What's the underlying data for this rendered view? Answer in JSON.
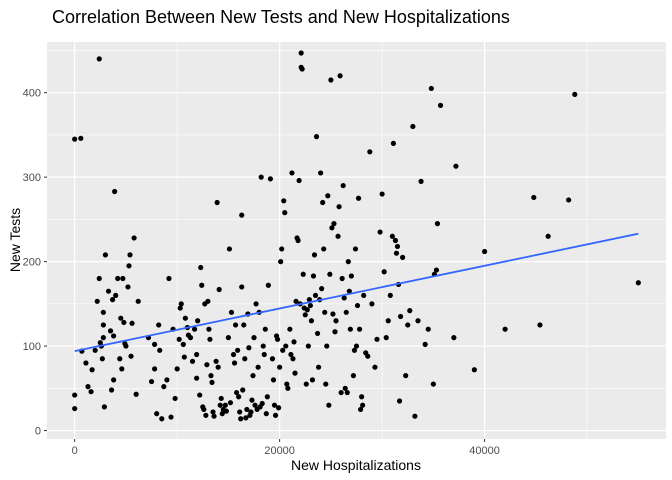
{
  "chart_data": {
    "type": "scatter",
    "title": "Correlation Between New Tests and New Hospitalizations",
    "xlabel": "New Hospitalizations",
    "ylabel": "New Tests",
    "xlim": [
      -2700,
      57700
    ],
    "ylim": [
      -10,
      460
    ],
    "x_ticks": [
      0,
      20000,
      40000
    ],
    "x_tick_labels": [
      "0",
      "20000",
      "40000"
    ],
    "y_ticks": [
      0,
      100,
      200,
      300,
      400
    ],
    "y_tick_labels": [
      "0",
      "100",
      "200",
      "300",
      "400"
    ],
    "grid": true,
    "panel_background": "#ebebeb",
    "grid_color": "#ffffff",
    "point_color": "#000000",
    "trend_color": "#3366ff",
    "trend_line": {
      "x": [
        0,
        55000
      ],
      "y": [
        94,
        233
      ]
    },
    "points": [
      [
        0,
        345
      ],
      [
        600,
        346
      ],
      [
        0,
        26
      ],
      [
        0,
        42
      ],
      [
        700,
        94
      ],
      [
        1100,
        80
      ],
      [
        1300,
        52
      ],
      [
        1600,
        46
      ],
      [
        1700,
        72
      ],
      [
        2000,
        95
      ],
      [
        2200,
        153
      ],
      [
        2400,
        180
      ],
      [
        2400,
        440
      ],
      [
        2500,
        104
      ],
      [
        2600,
        100
      ],
      [
        2700,
        85
      ],
      [
        2800,
        110
      ],
      [
        2800,
        125
      ],
      [
        2800,
        140
      ],
      [
        2900,
        28
      ],
      [
        3000,
        208
      ],
      [
        3300,
        165
      ],
      [
        3500,
        118
      ],
      [
        3600,
        48
      ],
      [
        3700,
        155
      ],
      [
        3800,
        60
      ],
      [
        3800,
        112
      ],
      [
        3900,
        283
      ],
      [
        4000,
        160
      ],
      [
        4200,
        180
      ],
      [
        4400,
        85
      ],
      [
        4500,
        133
      ],
      [
        4600,
        73
      ],
      [
        4700,
        180
      ],
      [
        4800,
        128
      ],
      [
        4900,
        103
      ],
      [
        5000,
        100
      ],
      [
        5200,
        170
      ],
      [
        5300,
        195
      ],
      [
        5400,
        208
      ],
      [
        5500,
        88
      ],
      [
        5600,
        127
      ],
      [
        5800,
        228
      ],
      [
        6000,
        43
      ],
      [
        6200,
        153
      ],
      [
        7200,
        110
      ],
      [
        7500,
        58
      ],
      [
        7800,
        102
      ],
      [
        7800,
        73
      ],
      [
        8000,
        20
      ],
      [
        8200,
        125
      ],
      [
        8300,
        95
      ],
      [
        8500,
        14
      ],
      [
        8700,
        52
      ],
      [
        9000,
        60
      ],
      [
        9200,
        180
      ],
      [
        9400,
        16
      ],
      [
        9600,
        120
      ],
      [
        9800,
        38
      ],
      [
        10000,
        73
      ],
      [
        10200,
        108
      ],
      [
        10300,
        145
      ],
      [
        10400,
        150
      ],
      [
        10600,
        102
      ],
      [
        10700,
        87
      ],
      [
        10800,
        133
      ],
      [
        11000,
        122
      ],
      [
        11100,
        113
      ],
      [
        11300,
        110
      ],
      [
        11500,
        82
      ],
      [
        11700,
        120
      ],
      [
        11900,
        90
      ],
      [
        11900,
        62
      ],
      [
        12000,
        130
      ],
      [
        12200,
        42
      ],
      [
        12300,
        193
      ],
      [
        12400,
        172
      ],
      [
        12500,
        28
      ],
      [
        12600,
        25
      ],
      [
        12700,
        150
      ],
      [
        12800,
        18
      ],
      [
        12900,
        78
      ],
      [
        13000,
        153
      ],
      [
        13100,
        120
      ],
      [
        13200,
        108
      ],
      [
        13300,
        65
      ],
      [
        13400,
        57
      ],
      [
        13500,
        22
      ],
      [
        13600,
        17
      ],
      [
        13800,
        82
      ],
      [
        13900,
        270
      ],
      [
        14000,
        75
      ],
      [
        14100,
        167
      ],
      [
        14200,
        30
      ],
      [
        14300,
        38
      ],
      [
        14400,
        20
      ],
      [
        14500,
        25
      ],
      [
        14700,
        30
      ],
      [
        14800,
        23
      ],
      [
        15000,
        110
      ],
      [
        15100,
        215
      ],
      [
        15200,
        33
      ],
      [
        15300,
        140
      ],
      [
        15500,
        90
      ],
      [
        15600,
        80
      ],
      [
        15700,
        125
      ],
      [
        15800,
        45
      ],
      [
        15900,
        95
      ],
      [
        16000,
        40
      ],
      [
        16100,
        22
      ],
      [
        16200,
        14
      ],
      [
        16300,
        170
      ],
      [
        16300,
        255
      ],
      [
        16400,
        48
      ],
      [
        16500,
        125
      ],
      [
        16600,
        85
      ],
      [
        16700,
        15
      ],
      [
        16800,
        25
      ],
      [
        16900,
        138
      ],
      [
        17000,
        98
      ],
      [
        17100,
        18
      ],
      [
        17200,
        22
      ],
      [
        17300,
        36
      ],
      [
        17400,
        65
      ],
      [
        17500,
        110
      ],
      [
        17600,
        30
      ],
      [
        17700,
        150
      ],
      [
        17800,
        25
      ],
      [
        17900,
        75
      ],
      [
        18000,
        140
      ],
      [
        18100,
        28
      ],
      [
        18200,
        300
      ],
      [
        18300,
        32
      ],
      [
        18400,
        100
      ],
      [
        18500,
        90
      ],
      [
        18600,
        120
      ],
      [
        18700,
        20
      ],
      [
        18800,
        40
      ],
      [
        18900,
        172
      ],
      [
        19100,
        298
      ],
      [
        19300,
        85
      ],
      [
        19400,
        60
      ],
      [
        19500,
        30
      ],
      [
        19600,
        18
      ],
      [
        19700,
        112
      ],
      [
        19800,
        108
      ],
      [
        19900,
        27
      ],
      [
        20000,
        75
      ],
      [
        20100,
        200
      ],
      [
        20200,
        215
      ],
      [
        20300,
        95
      ],
      [
        20400,
        272
      ],
      [
        20500,
        258
      ],
      [
        20600,
        100
      ],
      [
        20700,
        55
      ],
      [
        20800,
        50
      ],
      [
        21000,
        120
      ],
      [
        21100,
        90
      ],
      [
        21200,
        305
      ],
      [
        21300,
        85
      ],
      [
        21400,
        105
      ],
      [
        21500,
        68
      ],
      [
        21600,
        153
      ],
      [
        21700,
        228
      ],
      [
        21800,
        225
      ],
      [
        21900,
        296
      ],
      [
        22000,
        150
      ],
      [
        22100,
        447
      ],
      [
        22100,
        430
      ],
      [
        22200,
        428
      ],
      [
        22300,
        185
      ],
      [
        22400,
        145
      ],
      [
        22500,
        137
      ],
      [
        22600,
        55
      ],
      [
        22700,
        143
      ],
      [
        22800,
        100
      ],
      [
        22900,
        155
      ],
      [
        23000,
        148
      ],
      [
        23100,
        130
      ],
      [
        23200,
        60
      ],
      [
        23300,
        183
      ],
      [
        23400,
        208
      ],
      [
        23500,
        160
      ],
      [
        23600,
        348
      ],
      [
        23700,
        115
      ],
      [
        23800,
        75
      ],
      [
        23900,
        155
      ],
      [
        24000,
        305
      ],
      [
        24100,
        168
      ],
      [
        24200,
        270
      ],
      [
        24300,
        215
      ],
      [
        24400,
        140
      ],
      [
        24500,
        55
      ],
      [
        24600,
        100
      ],
      [
        24700,
        278
      ],
      [
        24800,
        30
      ],
      [
        24900,
        185
      ],
      [
        25000,
        415
      ],
      [
        25100,
        240
      ],
      [
        25200,
        138
      ],
      [
        25300,
        245
      ],
      [
        25400,
        117
      ],
      [
        25500,
        130
      ],
      [
        25700,
        230
      ],
      [
        25800,
        265
      ],
      [
        25900,
        420
      ],
      [
        26000,
        45
      ],
      [
        26100,
        180
      ],
      [
        26200,
        290
      ],
      [
        26300,
        157
      ],
      [
        26400,
        50
      ],
      [
        26500,
        140
      ],
      [
        26600,
        45
      ],
      [
        26700,
        200
      ],
      [
        26800,
        165
      ],
      [
        26900,
        120
      ],
      [
        27000,
        183
      ],
      [
        27200,
        65
      ],
      [
        27300,
        95
      ],
      [
        27400,
        215
      ],
      [
        27500,
        100
      ],
      [
        27600,
        148
      ],
      [
        27700,
        275
      ],
      [
        27800,
        120
      ],
      [
        27900,
        25
      ],
      [
        28000,
        40
      ],
      [
        28100,
        30
      ],
      [
        28200,
        160
      ],
      [
        28400,
        92
      ],
      [
        28600,
        88
      ],
      [
        28800,
        330
      ],
      [
        29000,
        150
      ],
      [
        29300,
        75
      ],
      [
        29500,
        108
      ],
      [
        29800,
        235
      ],
      [
        30000,
        280
      ],
      [
        30200,
        188
      ],
      [
        30400,
        110
      ],
      [
        30600,
        130
      ],
      [
        30800,
        160
      ],
      [
        31000,
        230
      ],
      [
        31100,
        340
      ],
      [
        31300,
        225
      ],
      [
        31400,
        210
      ],
      [
        31500,
        218
      ],
      [
        31600,
        173
      ],
      [
        31700,
        35
      ],
      [
        31800,
        135
      ],
      [
        32000,
        205
      ],
      [
        32300,
        65
      ],
      [
        32500,
        125
      ],
      [
        32700,
        142
      ],
      [
        33000,
        360
      ],
      [
        33200,
        17
      ],
      [
        33500,
        130
      ],
      [
        33800,
        295
      ],
      [
        34200,
        102
      ],
      [
        34500,
        120
      ],
      [
        34800,
        405
      ],
      [
        35000,
        55
      ],
      [
        35100,
        185
      ],
      [
        35300,
        190
      ],
      [
        35400,
        245
      ],
      [
        35700,
        385
      ],
      [
        37000,
        110
      ],
      [
        37200,
        313
      ],
      [
        39000,
        72
      ],
      [
        40000,
        212
      ],
      [
        42000,
        120
      ],
      [
        44800,
        276
      ],
      [
        45400,
        125
      ],
      [
        46200,
        230
      ],
      [
        48200,
        273
      ],
      [
        48800,
        398
      ],
      [
        55000,
        175
      ]
    ]
  }
}
